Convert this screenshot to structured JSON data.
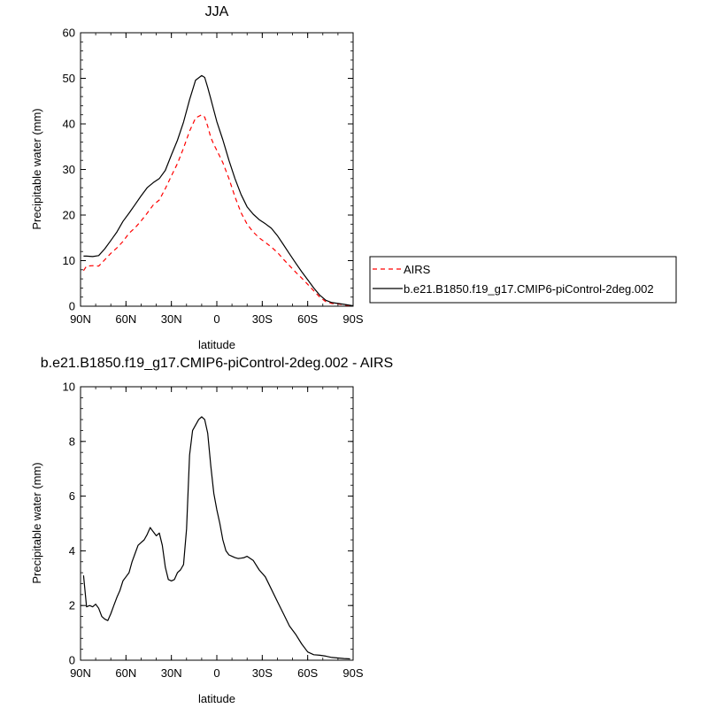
{
  "chart_data": [
    {
      "type": "line",
      "title": "JJA",
      "xlabel": "latitude",
      "ylabel": "Precipitable water (mm)",
      "xlim": [
        90,
        -90
      ],
      "ylim": [
        0,
        60
      ],
      "x_ticks": [
        90,
        60,
        30,
        0,
        -30,
        -60,
        -90
      ],
      "x_tick_labels": [
        "90N",
        "60N",
        "30N",
        "0",
        "30S",
        "60S",
        "90S"
      ],
      "y_ticks": [
        0,
        10,
        20,
        30,
        40,
        50,
        60
      ],
      "y_tick_labels": [
        "0",
        "10",
        "20",
        "30",
        "40",
        "50",
        "60"
      ],
      "legend": {
        "placement": "right"
      },
      "series": [
        {
          "name": "AIRS",
          "color": "#ff0000",
          "dash": "dashed",
          "x": [
            88,
            86,
            82,
            78,
            74,
            70,
            66,
            62,
            58,
            54,
            50,
            46,
            42,
            38,
            34,
            30,
            26,
            22,
            18,
            14,
            10,
            8,
            6,
            4,
            2,
            0,
            -4,
            -8,
            -12,
            -16,
            -20,
            -24,
            -28,
            -32,
            -36,
            -40,
            -44,
            -48,
            -52,
            -56,
            -60,
            -64,
            -68,
            -72,
            -76,
            -80,
            -84,
            -88,
            -90
          ],
          "y": [
            7.8,
            8.8,
            8.9,
            8.8,
            10.2,
            11.6,
            12.8,
            14.2,
            16.0,
            17.2,
            18.7,
            20.4,
            22.2,
            23.3,
            25.8,
            28.6,
            31.3,
            34.7,
            38.4,
            41.3,
            42.0,
            41.5,
            39.5,
            37.0,
            35.5,
            34.2,
            31.5,
            28.0,
            24.0,
            20.5,
            18.0,
            16.3,
            15.0,
            14.0,
            13.0,
            11.8,
            10.3,
            8.9,
            7.5,
            6.2,
            4.8,
            3.4,
            2.0,
            1.0,
            0.6,
            0.5,
            0.3,
            0.1,
            0.05
          ]
        },
        {
          "name": "b.e21.B1850.f19_g17.CMIP6-piControl-2deg.002",
          "color": "#000000",
          "dash": "solid",
          "x": [
            88,
            86,
            82,
            78,
            74,
            70,
            66,
            62,
            58,
            54,
            50,
            46,
            42,
            38,
            34,
            30,
            26,
            22,
            18,
            14,
            10,
            8,
            6,
            4,
            2,
            0,
            -4,
            -8,
            -12,
            -16,
            -20,
            -24,
            -28,
            -32,
            -36,
            -40,
            -44,
            -48,
            -52,
            -56,
            -60,
            -64,
            -68,
            -72,
            -76,
            -80,
            -84,
            -88,
            -90
          ],
          "y": [
            11.0,
            11.0,
            10.9,
            11.1,
            12.6,
            14.4,
            16.3,
            18.6,
            20.4,
            22.3,
            24.2,
            26.0,
            27.1,
            28.0,
            29.8,
            33.2,
            36.4,
            40.4,
            45.3,
            49.6,
            50.6,
            50.2,
            48.0,
            45.5,
            43.0,
            40.5,
            36.5,
            32.0,
            28.0,
            24.5,
            21.8,
            20.2,
            19.0,
            18.1,
            17.1,
            15.5,
            13.5,
            11.5,
            9.5,
            7.6,
            5.8,
            4.0,
            2.4,
            1.3,
            0.8,
            0.6,
            0.4,
            0.2,
            0.1
          ]
        }
      ]
    },
    {
      "type": "line",
      "title": "b.e21.B1850.f19_g17.CMIP6-piControl-2deg.002 - AIRS",
      "xlabel": "latitude",
      "ylabel": "Precipitable water (mm)",
      "xlim": [
        90,
        -90
      ],
      "ylim": [
        0,
        10
      ],
      "x_ticks": [
        90,
        60,
        30,
        0,
        -30,
        -60,
        -90
      ],
      "x_tick_labels": [
        "90N",
        "60N",
        "30N",
        "0",
        "30S",
        "60S",
        "90S"
      ],
      "y_ticks": [
        0,
        2,
        4,
        6,
        8,
        10
      ],
      "y_tick_labels": [
        "0",
        "2",
        "4",
        "6",
        "8",
        "10"
      ],
      "series": [
        {
          "color": "#000000",
          "dash": "solid",
          "x": [
            88,
            86,
            84,
            82,
            80,
            78,
            76,
            74,
            72,
            70,
            68,
            66,
            64,
            62,
            60,
            58,
            56,
            54,
            52,
            50,
            48,
            46,
            44,
            42,
            40,
            38,
            36,
            34,
            32,
            30,
            28,
            26,
            24,
            22,
            20,
            18,
            16,
            14,
            12,
            10,
            8,
            6,
            4,
            2,
            0,
            -2,
            -4,
            -6,
            -8,
            -10,
            -12,
            -14,
            -16,
            -18,
            -20,
            -24,
            -28,
            -32,
            -36,
            -40,
            -44,
            -48,
            -52,
            -56,
            -60,
            -64,
            -68,
            -72,
            -76,
            -80,
            -84,
            -88
          ],
          "y": [
            3.1,
            1.95,
            2.0,
            1.95,
            2.05,
            1.9,
            1.6,
            1.5,
            1.45,
            1.7,
            2.0,
            2.3,
            2.55,
            2.9,
            3.05,
            3.2,
            3.6,
            3.9,
            4.2,
            4.3,
            4.4,
            4.6,
            4.85,
            4.7,
            4.55,
            4.65,
            4.2,
            3.4,
            2.95,
            2.9,
            2.95,
            3.2,
            3.3,
            3.5,
            4.8,
            7.5,
            8.4,
            8.6,
            8.8,
            8.9,
            8.8,
            8.3,
            7.1,
            6.1,
            5.5,
            5.0,
            4.4,
            4.0,
            3.85,
            3.8,
            3.75,
            3.72,
            3.73,
            3.75,
            3.8,
            3.65,
            3.3,
            3.05,
            2.6,
            2.15,
            1.7,
            1.25,
            0.95,
            0.6,
            0.3,
            0.2,
            0.18,
            0.15,
            0.1,
            0.08,
            0.06,
            0.05
          ]
        }
      ]
    }
  ]
}
